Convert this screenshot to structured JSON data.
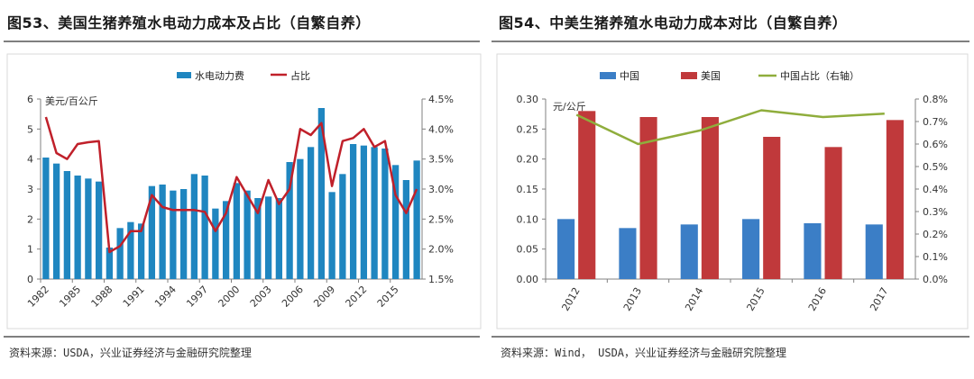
{
  "left_panel": {
    "title": "图53、美国生猪养殖水电动力成本及占比（自繁自养）",
    "source": "资料来源：USDA，兴业证券经济与金融研究院整理"
  },
  "right_panel": {
    "title": "图54、中美生猪养殖水电动力成本对比（自繁自养）",
    "source": "资料来源：Wind， USDA，兴业证券经济与金融研究院整理"
  },
  "chart_data": [
    {
      "type": "bar",
      "unit_label": "美元/百公斤",
      "x_tick_labels": [
        "1982",
        "1985",
        "1988",
        "1991",
        "1994",
        "1997",
        "2000",
        "2003",
        "2006",
        "2009",
        "2012",
        "2015"
      ],
      "years": [
        1982,
        1983,
        1984,
        1985,
        1986,
        1987,
        1988,
        1989,
        1990,
        1991,
        1992,
        1993,
        1994,
        1995,
        1996,
        1997,
        1998,
        1999,
        2000,
        2001,
        2002,
        2003,
        2004,
        2005,
        2006,
        2007,
        2008,
        2009,
        2010,
        2011,
        2012,
        2013,
        2014,
        2015,
        2016,
        2017
      ],
      "series": [
        {
          "name": "水电动力费",
          "axis": "left",
          "color": "#1f86c0",
          "values": [
            4.05,
            3.85,
            3.6,
            3.45,
            3.35,
            3.25,
            1.05,
            1.7,
            1.9,
            1.85,
            3.1,
            3.15,
            2.95,
            3.0,
            3.5,
            3.45,
            2.35,
            2.6,
            3.2,
            2.95,
            2.7,
            2.75,
            2.7,
            3.9,
            4.0,
            4.4,
            5.7,
            2.9,
            3.5,
            4.5,
            4.45,
            4.4,
            4.35,
            3.8,
            3.3,
            3.95
          ]
        },
        {
          "name": "占比",
          "axis": "right",
          "type": "line",
          "color": "#c0202a",
          "values": [
            4.2,
            3.6,
            3.5,
            3.75,
            3.78,
            3.8,
            1.95,
            2.05,
            2.3,
            2.3,
            2.9,
            2.7,
            2.65,
            2.65,
            2.65,
            2.62,
            2.3,
            2.6,
            3.2,
            2.9,
            2.6,
            3.15,
            2.75,
            3.0,
            4.0,
            3.9,
            4.1,
            3.05,
            3.8,
            3.85,
            4.0,
            3.7,
            3.8,
            2.9,
            2.6,
            3.0
          ]
        }
      ],
      "y_left": {
        "min": 0,
        "max": 6,
        "ticks": [
          "0",
          "1",
          "2",
          "3",
          "4",
          "5",
          "6"
        ]
      },
      "y_right": {
        "min": 1.5,
        "max": 4.5,
        "ticks": [
          "1.5%",
          "2.0%",
          "2.5%",
          "3.0%",
          "3.5%",
          "4.0%",
          "4.5%"
        ]
      },
      "legend_position": "top"
    },
    {
      "type": "bar",
      "unit_label": "元/公斤",
      "categories": [
        "2012",
        "2013",
        "2014",
        "2015",
        "2016",
        "2017"
      ],
      "series": [
        {
          "name": "中国",
          "axis": "left",
          "color": "#3b7ec6",
          "values": [
            0.1,
            0.085,
            0.091,
            0.1,
            0.093,
            0.091
          ]
        },
        {
          "name": "美国",
          "axis": "left",
          "color": "#c0393b",
          "values": [
            0.28,
            0.27,
            0.27,
            0.237,
            0.22,
            0.265
          ]
        },
        {
          "name": "中国占比（右轴）",
          "axis": "right",
          "type": "line",
          "color": "#8fad3c",
          "values": [
            0.73,
            0.6,
            0.66,
            0.75,
            0.72,
            0.735
          ]
        }
      ],
      "y_left": {
        "min": 0,
        "max": 0.3,
        "ticks": [
          "0.00",
          "0.05",
          "0.10",
          "0.15",
          "0.20",
          "0.25",
          "0.30"
        ]
      },
      "y_right": {
        "min": 0,
        "max": 0.8,
        "ticks": [
          "0.0%",
          "0.1%",
          "0.2%",
          "0.3%",
          "0.4%",
          "0.5%",
          "0.6%",
          "0.7%",
          "0.8%"
        ]
      },
      "legend_position": "top"
    }
  ]
}
